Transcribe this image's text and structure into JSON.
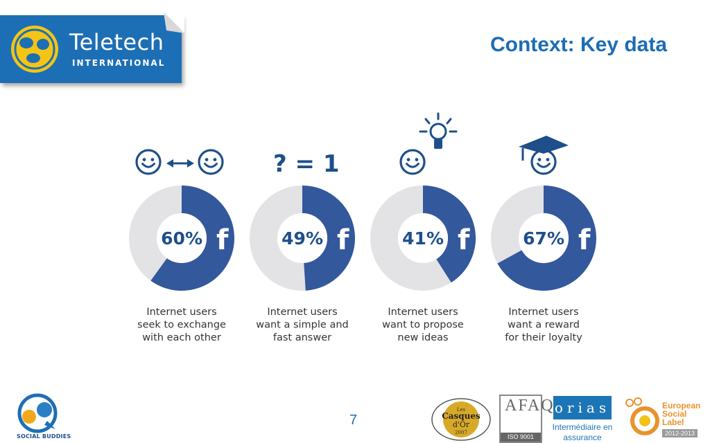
{
  "header": {
    "logo_name": "Teletech",
    "logo_sub": "INTERNATIONAL",
    "title": "Context: Key data"
  },
  "chart_data": {
    "type": "pie",
    "unit": "%",
    "colors": {
      "filled": "#33589b",
      "remaining": "#e3e3e5",
      "text": "#1e4f8a"
    },
    "items": [
      {
        "value": 60,
        "label": "60%",
        "caption": [
          "Internet users",
          "seek to exchange",
          "with each other"
        ],
        "icon": "smiley-exchange-icon"
      },
      {
        "value": 49,
        "label": "49%",
        "caption": [
          "Internet users",
          "want a simple and",
          "fast answer"
        ],
        "icon": "question-equals-one-icon"
      },
      {
        "value": 41,
        "label": "41%",
        "caption": [
          "Internet users",
          "want to propose",
          "new ideas"
        ],
        "icon": "smiley-lightbulb-icon"
      },
      {
        "value": 67,
        "label": "67%",
        "caption": [
          "Internet users",
          "want a reward",
          "for their loyalty"
        ],
        "icon": "smiley-graduate-icon"
      }
    ],
    "icon_text": "? = 1",
    "brand_glyph": "f"
  },
  "footer": {
    "page_number": "7",
    "social_buddies": "SOCIAL BUDDIES",
    "casques_small": "Les",
    "casques_main": "Casques",
    "casques_of": "d'Or",
    "casques_year": "2007",
    "afaq_letters": "AFAQ",
    "afaq_iso": "ISO 9001",
    "orias": "orias",
    "orias_sub": "Intermédiaire en assurance",
    "esl_text": "European Social Label",
    "esl_year": "2012-2013"
  }
}
